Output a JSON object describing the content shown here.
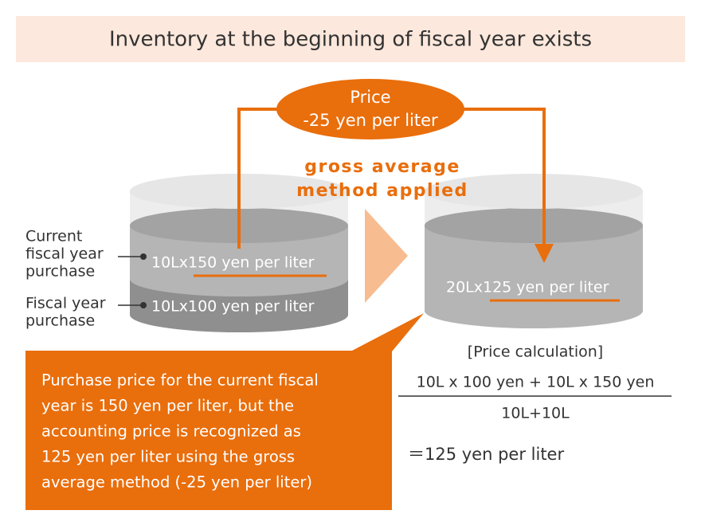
{
  "header": {
    "title": "Inventory at the beginning of fiscal year exists"
  },
  "price_bubble": {
    "lines": [
      "Price",
      "-25 yen per liter"
    ]
  },
  "method": {
    "lines": [
      "gross average",
      "method applied"
    ]
  },
  "left_tank": {
    "upper_layer": {
      "label_lines": [
        "Current",
        "fiscal year",
        "purchase"
      ],
      "content": "10Lx150 yen per liter"
    },
    "lower_layer": {
      "label_lines": [
        "Fiscal year",
        "purchase"
      ],
      "content": "10Lx100 yen per liter"
    }
  },
  "right_tank": {
    "content": "20Lx125 yen per liter"
  },
  "callout": {
    "lines": [
      "Purchase price for the current fiscal",
      "year is 150 yen per liter, but the",
      "accounting price is recognized as",
      "125 yen per liter using the gross",
      "average method (-25 yen per liter)"
    ]
  },
  "calculation": {
    "heading": "[Price calculation]",
    "numerator": "10L x 100 yen + 10L x 150 yen",
    "denominator": "10L+10L",
    "result": "＝125 yen per liter"
  }
}
